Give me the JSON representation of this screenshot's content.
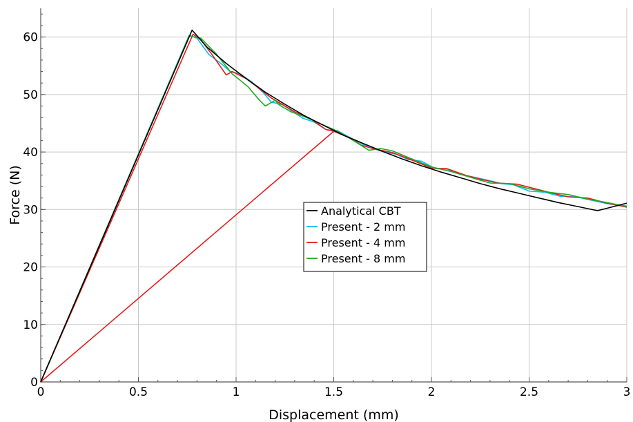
{
  "chart_data": {
    "type": "line",
    "title": "",
    "xlabel": "Displacement (mm)",
    "ylabel": "Force (N)",
    "xlim": [
      0,
      3
    ],
    "ylim": [
      0,
      65
    ],
    "x_ticks": [
      0,
      0.5,
      1,
      1.5,
      2,
      2.5,
      3
    ],
    "x_tick_labels": [
      "0",
      "0.5",
      "1",
      "1.5",
      "2",
      "2.5",
      "3"
    ],
    "y_ticks": [
      0,
      10,
      20,
      30,
      40,
      50,
      60
    ],
    "y_tick_labels": [
      "0",
      "10",
      "20",
      "30",
      "40",
      "50",
      "60"
    ],
    "grid": true,
    "legend_position": "center-right",
    "series": [
      {
        "name": "Present - 2 mm",
        "color": "#00bfff",
        "points": [
          [
            0,
            0
          ],
          [
            0.76,
            60.3
          ],
          [
            0.8,
            59.8
          ],
          [
            0.86,
            57.0
          ],
          [
            0.93,
            55.2
          ],
          [
            0.97,
            54.0
          ],
          [
            1.02,
            53.6
          ],
          [
            1.08,
            52.2
          ],
          [
            1.14,
            50.3
          ],
          [
            1.18,
            48.7
          ],
          [
            1.24,
            48.2
          ],
          [
            1.3,
            46.8
          ],
          [
            1.34,
            45.9
          ],
          [
            1.4,
            45.2
          ],
          [
            1.46,
            43.9
          ],
          [
            1.52,
            43.7
          ],
          [
            1.6,
            42.2
          ],
          [
            1.68,
            40.8
          ],
          [
            1.76,
            40.0
          ],
          [
            1.82,
            39.6
          ],
          [
            1.88,
            38.7
          ],
          [
            1.95,
            38.4
          ],
          [
            2.02,
            37.1
          ],
          [
            2.08,
            37.0
          ],
          [
            2.15,
            36.1
          ],
          [
            2.22,
            35.6
          ],
          [
            2.3,
            35.0
          ],
          [
            2.36,
            34.5
          ],
          [
            2.42,
            34.3
          ],
          [
            2.5,
            33.2
          ],
          [
            2.58,
            33.0
          ],
          [
            2.66,
            32.3
          ],
          [
            2.74,
            32.2
          ],
          [
            2.82,
            31.6
          ],
          [
            2.9,
            31.0
          ],
          [
            3.0,
            30.6
          ]
        ]
      },
      {
        "name": "Present - 4 mm",
        "color": "#e8191a",
        "points": [
          [
            0,
            0
          ],
          [
            0.78,
            60.5
          ],
          [
            0.82,
            59.5
          ],
          [
            0.88,
            56.8
          ],
          [
            0.95,
            53.4
          ],
          [
            0.98,
            54.0
          ],
          [
            1.05,
            52.8
          ],
          [
            1.12,
            51.0
          ],
          [
            1.18,
            49.4
          ],
          [
            1.22,
            48.6
          ],
          [
            1.3,
            47.0
          ],
          [
            1.38,
            45.8
          ],
          [
            1.46,
            43.9
          ],
          [
            1.5,
            43.6
          ],
          [
            0,
            0
          ],
          [
            1.5,
            43.6
          ],
          [
            1.58,
            42.5
          ],
          [
            1.64,
            41.2
          ],
          [
            1.7,
            40.6
          ],
          [
            1.8,
            39.9
          ],
          [
            1.9,
            38.6
          ],
          [
            2.0,
            37.2
          ],
          [
            2.08,
            37.1
          ],
          [
            2.18,
            35.9
          ],
          [
            2.26,
            35.2
          ],
          [
            2.34,
            34.6
          ],
          [
            2.44,
            34.4
          ],
          [
            2.52,
            33.7
          ],
          [
            2.6,
            33.0
          ],
          [
            2.7,
            32.2
          ],
          [
            2.8,
            32.0
          ],
          [
            2.9,
            31.1
          ],
          [
            3.0,
            30.4
          ]
        ]
      },
      {
        "name": "Present - 8 mm",
        "color": "#22aa22",
        "points": [
          [
            0,
            0
          ],
          [
            0.76,
            60.2
          ],
          [
            0.82,
            59.8
          ],
          [
            0.9,
            57.0
          ],
          [
            0.98,
            53.6
          ],
          [
            1.06,
            51.4
          ],
          [
            1.12,
            49.0
          ],
          [
            1.15,
            48.0
          ],
          [
            1.2,
            49.0
          ],
          [
            1.22,
            48.2
          ],
          [
            1.28,
            47.0
          ],
          [
            1.36,
            46.0
          ],
          [
            1.44,
            44.8
          ],
          [
            1.52,
            43.6
          ],
          [
            1.6,
            42.0
          ],
          [
            1.68,
            40.3
          ],
          [
            1.74,
            40.6
          ],
          [
            1.8,
            40.2
          ],
          [
            1.9,
            38.8
          ],
          [
            2.0,
            37.4
          ],
          [
            2.1,
            36.6
          ],
          [
            2.2,
            35.6
          ],
          [
            2.3,
            34.6
          ],
          [
            2.4,
            34.5
          ],
          [
            2.5,
            33.6
          ],
          [
            2.6,
            33.0
          ],
          [
            2.7,
            32.6
          ],
          [
            2.8,
            31.8
          ],
          [
            2.9,
            31.2
          ],
          [
            3.0,
            30.5
          ]
        ]
      },
      {
        "name": "Analytical CBT",
        "color": "#000000",
        "points": [
          [
            0,
            0
          ],
          [
            0.775,
            61.2
          ],
          [
            0.85,
            58.3
          ],
          [
            0.95,
            55.4
          ],
          [
            1.05,
            52.8
          ],
          [
            1.15,
            50.4
          ],
          [
            1.25,
            48.3
          ],
          [
            1.35,
            46.3
          ],
          [
            1.45,
            44.6
          ],
          [
            1.55,
            42.9
          ],
          [
            1.65,
            41.5
          ],
          [
            1.75,
            40.1
          ],
          [
            1.85,
            38.8
          ],
          [
            1.95,
            37.6
          ],
          [
            2.05,
            36.5
          ],
          [
            2.15,
            35.5
          ],
          [
            2.25,
            34.5
          ],
          [
            2.35,
            33.6
          ],
          [
            2.45,
            32.8
          ],
          [
            2.55,
            32.0
          ],
          [
            2.65,
            31.2
          ],
          [
            2.75,
            30.5
          ],
          [
            2.85,
            29.8
          ],
          [
            3.0,
            31.1
          ]
        ]
      }
    ],
    "legend": [
      {
        "name": "Analytical CBT",
        "color": "#000000"
      },
      {
        "name": "Present - 2 mm",
        "color": "#00bfff"
      },
      {
        "name": "Present - 4 mm",
        "color": "#e8191a"
      },
      {
        "name": "Present - 8 mm",
        "color": "#22aa22"
      }
    ]
  }
}
